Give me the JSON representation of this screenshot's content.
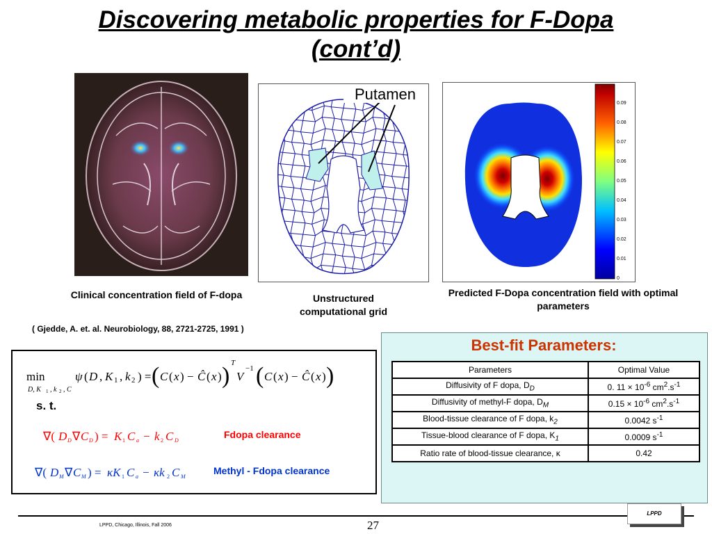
{
  "title": {
    "line1": "Discovering metabolic properties for F-Dopa",
    "line2": "(cont’d)"
  },
  "grid_label": "Putamen",
  "captions": {
    "clinical": "Clinical concentration field of F-dopa",
    "grid": "Unstructured computational grid",
    "predicted": "Predicted F-Dopa concentration field with optimal parameters"
  },
  "citation": "( Gjedde, A. et. al. Neurobiology, 88, 2721-2725, 1991 )",
  "colorbar": {
    "ticks": [
      "0.09",
      "0.08",
      "0.07",
      "0.06",
      "0.05",
      "0.04",
      "0.03",
      "0.02",
      "0.01",
      "0"
    ]
  },
  "equations": {
    "st_label": "s. t.",
    "fdopa_label": "Fdopa clearance",
    "methyl_label": "Methyl - Fdopa clearance"
  },
  "bestfit": {
    "title": "Best-fit Parameters:",
    "headers": [
      "Parameters",
      "Optimal Value"
    ],
    "rows": [
      {
        "param": "Diffusivity of F dopa, D",
        "sub": "D",
        "value": "0. 11 × 10",
        "exp": "-6",
        "unit": " cm",
        "unit_exp": "2",
        "unit_tail": ".s",
        "tail_exp": "-1"
      },
      {
        "param": "Diffusivity of methyl-F dopa, D",
        "sub": "M",
        "value": "0.15 × 10",
        "exp": "-6",
        "unit": " cm",
        "unit_exp": "2",
        "unit_tail": ".s",
        "tail_exp": "-1"
      },
      {
        "param": "Blood-tissue clearance of F dopa, k",
        "sub": "2",
        "value": "0.0042 s",
        "exp": "-1"
      },
      {
        "param": "Tissue-blood clearance of F dopa, K",
        "sub": "1",
        "value": "0.0009 s",
        "exp": "-1"
      },
      {
        "param": "Ratio rate of blood-tissue clearance, κ",
        "sub": "",
        "value": "0.42",
        "exp": ""
      }
    ]
  },
  "footer": {
    "left": "LPPD, Chicago, Illinois, Fall 2006",
    "page": "27",
    "logo": "LPPD"
  },
  "colors": {
    "best_fit_title": "#cc3300",
    "fdopa_label": "#ff0000",
    "methyl_label": "#0033cc",
    "grid_lines": "#1a1aa8",
    "putamen_fill": "#bff0ec",
    "bestfit_bg": "#dcf6f6"
  }
}
